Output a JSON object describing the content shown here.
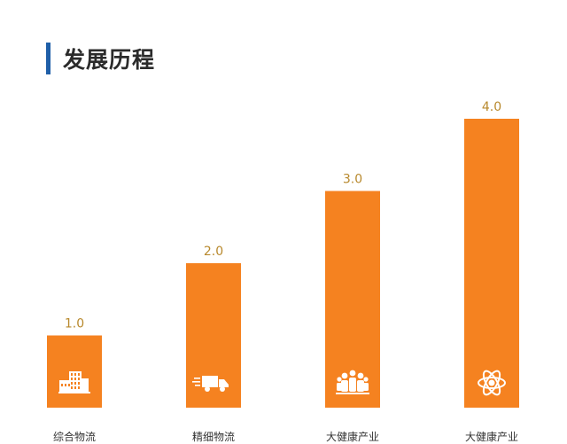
{
  "header": {
    "title": "发展历程"
  },
  "colors": {
    "bar": "#f58220",
    "value_label": "#b8892d",
    "title_accent": "#1f5fa8",
    "icon": "#ffffff"
  },
  "chart_data": {
    "type": "bar",
    "title": "",
    "xlabel": "",
    "ylabel": "",
    "categories": [
      "综合物流",
      "精细物流",
      "大健康产业",
      "大健康产业"
    ],
    "values": [
      1.0,
      2.0,
      3.0,
      4.0
    ],
    "value_labels": [
      "1.0",
      "2.0",
      "3.0",
      "4.0"
    ],
    "icons": [
      "building-icon",
      "delivery-truck-icon",
      "people-group-icon",
      "atom-icon"
    ],
    "ylim": [
      0,
      4.0
    ],
    "grid": false,
    "legend": "none"
  }
}
